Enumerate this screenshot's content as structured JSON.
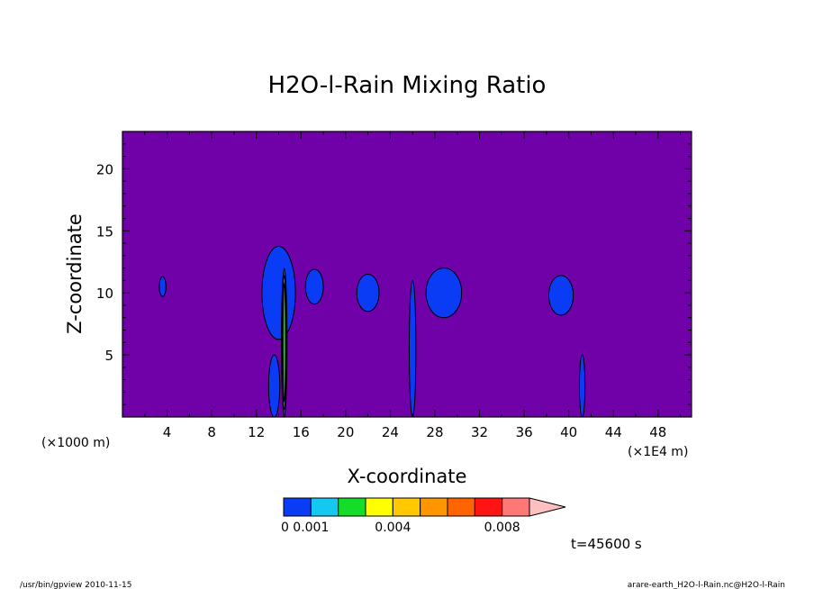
{
  "chart_data": {
    "type": "contour",
    "title": "H2O-l-Rain Mixing Ratio",
    "xlabel": "X-coordinate",
    "ylabel": "Z-coordinate",
    "x_unit_left": "(×1000 m)",
    "x_unit_right": "(×1E4 m)",
    "xlim": [
      0,
      51
    ],
    "ylim": [
      0,
      23
    ],
    "xticks": [
      4,
      8,
      12,
      16,
      20,
      24,
      28,
      32,
      36,
      40,
      44,
      48
    ],
    "yticks": [
      5,
      10,
      15,
      20
    ],
    "xtick_labels": [
      "4",
      "8",
      "12",
      "16",
      "20",
      "24",
      "28",
      "32",
      "36",
      "40",
      "44",
      "48"
    ],
    "ytick_labels": [
      "5",
      "10",
      "15",
      "20"
    ],
    "background_color": "#7000a8",
    "colorbar": {
      "colors": [
        "#0a3cf5",
        "#14c8f0",
        "#14dc28",
        "#ffff00",
        "#ffc800",
        "#ff9600",
        "#ff6400",
        "#ff1414",
        "#ff7878",
        "#ffc0c0"
      ],
      "labels": [
        "0.001",
        "0.004",
        "0.008"
      ],
      "label_values": [
        0.001,
        0.004,
        0.008
      ],
      "prefix_label": "0",
      "min": 0.0,
      "step": 0.001,
      "extend": "max"
    },
    "features": [
      {
        "x": 3.6,
        "z": 10.5,
        "width": 0.6,
        "height": 1.6,
        "max_level": 1
      },
      {
        "x": 14.0,
        "z": 10.0,
        "width": 3.0,
        "height": 7.5,
        "max_level": 1
      },
      {
        "x": 13.6,
        "z": 2.5,
        "width": 1.0,
        "height": 5.0,
        "max_level": 1
      },
      {
        "x": 14.5,
        "z": 6.0,
        "width": 0.5,
        "height": 12.0,
        "max_level": 3
      },
      {
        "x": 17.2,
        "z": 10.5,
        "width": 1.6,
        "height": 2.8,
        "max_level": 1
      },
      {
        "x": 22.0,
        "z": 10.0,
        "width": 2.0,
        "height": 3.0,
        "max_level": 1
      },
      {
        "x": 26.0,
        "z": 5.5,
        "width": 0.6,
        "height": 11.0,
        "max_level": 1
      },
      {
        "x": 28.8,
        "z": 10.0,
        "width": 3.2,
        "height": 4.0,
        "max_level": 1
      },
      {
        "x": 39.3,
        "z": 9.8,
        "width": 2.2,
        "height": 3.2,
        "max_level": 1
      },
      {
        "x": 41.2,
        "z": 2.5,
        "width": 0.5,
        "height": 5.0,
        "max_level": 1
      }
    ]
  },
  "footer": {
    "program": "/usr/bin/gpview   2010-11-15",
    "source": "arare-earth_H2O-l-Rain.nc@H2O-l-Rain",
    "time_label": "t=45600 s"
  }
}
